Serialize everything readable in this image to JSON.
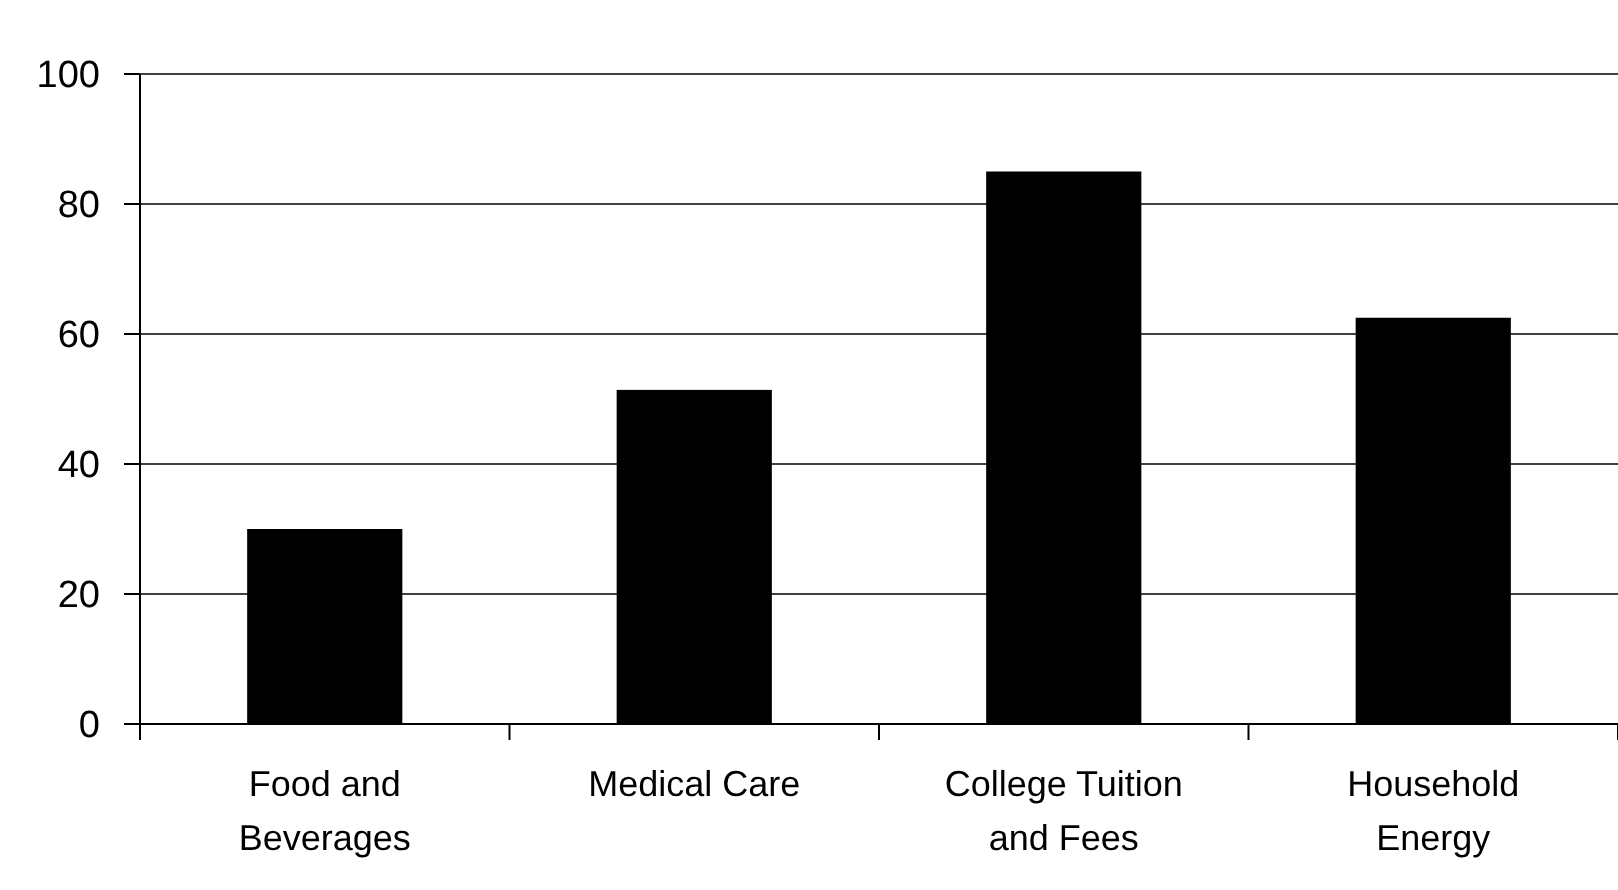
{
  "chart_data": {
    "type": "bar",
    "categories": [
      "Food and Beverages",
      "Medical Care",
      "College Tuition and Fees",
      "Household Energy"
    ],
    "values": [
      30,
      51.4,
      85,
      62.5
    ],
    "color": "#000000",
    "ylim": [
      0,
      100
    ],
    "yticks": [
      0,
      20,
      40,
      60,
      80,
      100
    ],
    "grid": "y"
  }
}
